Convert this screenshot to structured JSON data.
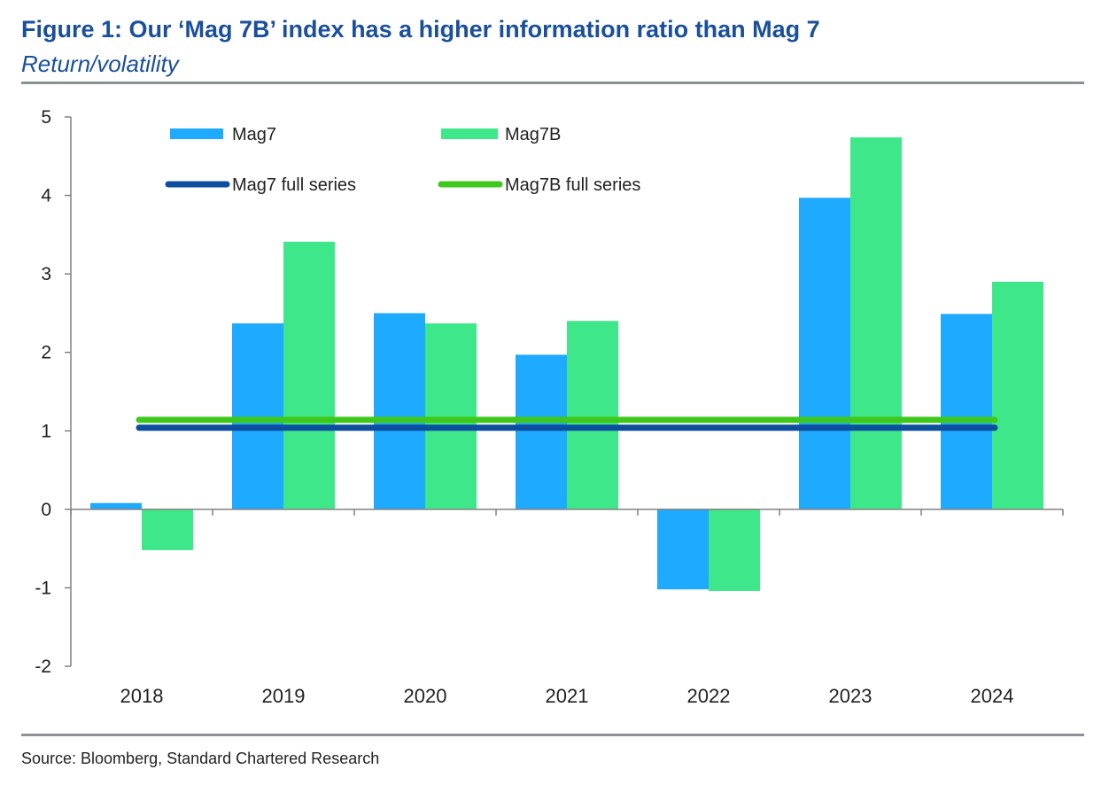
{
  "figure": {
    "title": "Figure 1: Our ‘Mag 7B’ index has a higher information ratio than Mag 7",
    "subtitle": "Return/volatility",
    "source": "Source: Bloomberg, Standard Chartered Research"
  },
  "chart_data": {
    "type": "bar",
    "categories": [
      "2018",
      "2019",
      "2020",
      "2021",
      "2022",
      "2023",
      "2024"
    ],
    "series": [
      {
        "name": "Mag7",
        "kind": "bar",
        "color": "#1eaaff",
        "values": [
          0.08,
          2.37,
          2.5,
          1.97,
          -1.02,
          3.97,
          2.49
        ]
      },
      {
        "name": "Mag7B",
        "kind": "bar",
        "color": "#3ee88a",
        "values": [
          -0.52,
          3.41,
          2.37,
          2.4,
          -1.04,
          4.74,
          2.9
        ]
      }
    ],
    "reference_lines": [
      {
        "name": "Mag7 full series",
        "value": 1.04,
        "color": "#0d4f9e"
      },
      {
        "name": "Mag7B full series",
        "value": 1.14,
        "color": "#3fc81c"
      }
    ],
    "y_ticks": [
      "-2",
      "-1",
      "0",
      "1",
      "2",
      "3",
      "4",
      "5"
    ],
    "ylim": [
      -2,
      5
    ],
    "title": "Figure 1: Our ‘Mag 7B’ index has a higher information ratio than Mag 7",
    "subtitle": "Return/volatility",
    "xlabel": "",
    "ylabel": "",
    "legend_position": "top-left",
    "grid": false
  }
}
